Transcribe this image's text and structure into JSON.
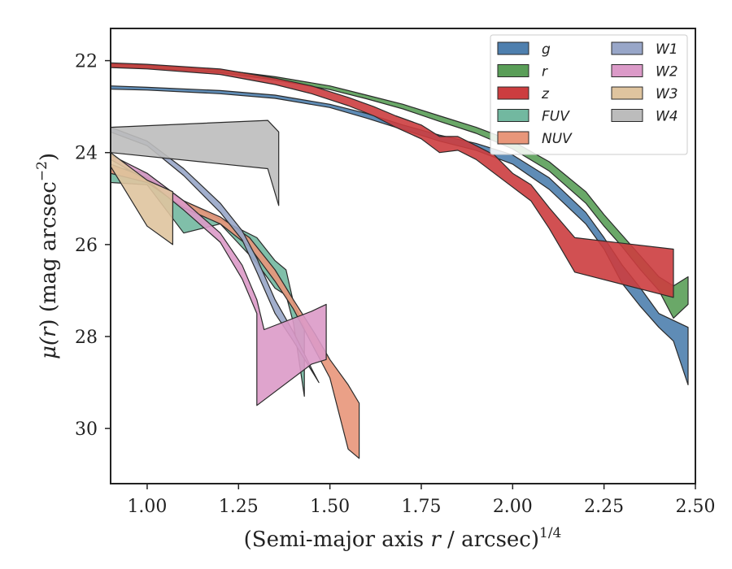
{
  "chart_data": {
    "type": "area",
    "xlabel": "(Semi-major axis r / arcsec)^1/4",
    "xlabel_parts": {
      "main": "(Semi-major axis ",
      "var": "r",
      "mid": " / arcsec)",
      "sup": "1/4"
    },
    "ylabel": "μ(r) (mag arcsec⁻²)",
    "ylabel_parts": {
      "mu": "μ(",
      "var": "r",
      "rest": ") (mag arcsec",
      "sup": "−2",
      "close": ")"
    },
    "xlim": [
      0.9,
      2.5
    ],
    "ylim": [
      31.2,
      21.3
    ],
    "y_inverted": true,
    "xticks": [
      1.0,
      1.25,
      1.5,
      1.75,
      2.0,
      2.25,
      2.5
    ],
    "xtick_labels": [
      "1.00",
      "1.25",
      "1.50",
      "1.75",
      "2.00",
      "2.25",
      "2.50"
    ],
    "yticks": [
      22,
      24,
      26,
      28,
      30
    ],
    "ytick_labels": [
      "22",
      "24",
      "26",
      "28",
      "30"
    ],
    "legend_placement": "top-right",
    "legend_columns": 2,
    "grid": false,
    "series": [
      {
        "name": "g",
        "color": "#4e7fae",
        "upper": [
          [
            0.9,
            22.55
          ],
          [
            1.0,
            22.58
          ],
          [
            1.2,
            22.65
          ],
          [
            1.35,
            22.75
          ],
          [
            1.5,
            22.95
          ],
          [
            1.6,
            23.15
          ],
          [
            1.7,
            23.4
          ],
          [
            1.8,
            23.62
          ],
          [
            1.9,
            23.8
          ],
          [
            2.0,
            24.05
          ],
          [
            2.1,
            24.55
          ],
          [
            2.2,
            25.3
          ],
          [
            2.25,
            25.85
          ],
          [
            2.3,
            26.45
          ],
          [
            2.35,
            26.95
          ],
          [
            2.4,
            27.5
          ],
          [
            2.44,
            27.65
          ],
          [
            2.48,
            27.8
          ]
        ],
        "lower": [
          [
            0.9,
            22.62
          ],
          [
            1.0,
            22.64
          ],
          [
            1.2,
            22.72
          ],
          [
            1.35,
            22.82
          ],
          [
            1.5,
            23.02
          ],
          [
            1.6,
            23.25
          ],
          [
            1.7,
            23.5
          ],
          [
            1.8,
            23.75
          ],
          [
            1.9,
            23.95
          ],
          [
            2.0,
            24.25
          ],
          [
            2.1,
            24.8
          ],
          [
            2.2,
            25.55
          ],
          [
            2.25,
            26.1
          ],
          [
            2.3,
            26.85
          ],
          [
            2.35,
            27.35
          ],
          [
            2.4,
            27.8
          ],
          [
            2.44,
            28.1
          ],
          [
            2.48,
            29.05
          ]
        ]
      },
      {
        "name": "r",
        "color": "#5a9e58",
        "upper": [
          [
            0.9,
            22.08
          ],
          [
            1.0,
            22.1
          ],
          [
            1.2,
            22.2
          ],
          [
            1.35,
            22.35
          ],
          [
            1.5,
            22.55
          ],
          [
            1.6,
            22.75
          ],
          [
            1.7,
            22.95
          ],
          [
            1.8,
            23.2
          ],
          [
            1.9,
            23.45
          ],
          [
            2.0,
            23.75
          ],
          [
            2.1,
            24.2
          ],
          [
            2.2,
            24.85
          ],
          [
            2.25,
            25.35
          ],
          [
            2.3,
            25.8
          ],
          [
            2.35,
            26.25
          ],
          [
            2.4,
            26.7
          ],
          [
            2.44,
            26.9
          ],
          [
            2.48,
            26.7
          ]
        ],
        "lower": [
          [
            0.9,
            22.14
          ],
          [
            1.0,
            22.16
          ],
          [
            1.2,
            22.26
          ],
          [
            1.35,
            22.42
          ],
          [
            1.5,
            22.63
          ],
          [
            1.6,
            22.83
          ],
          [
            1.7,
            23.05
          ],
          [
            1.8,
            23.32
          ],
          [
            1.9,
            23.58
          ],
          [
            2.0,
            23.92
          ],
          [
            2.1,
            24.4
          ],
          [
            2.2,
            25.1
          ],
          [
            2.25,
            25.6
          ],
          [
            2.3,
            26.05
          ],
          [
            2.35,
            26.55
          ],
          [
            2.4,
            27.0
          ],
          [
            2.44,
            27.6
          ],
          [
            2.48,
            27.3
          ]
        ]
      },
      {
        "name": "z",
        "color": "#cc3d3f",
        "upper": [
          [
            0.9,
            22.05
          ],
          [
            1.0,
            22.08
          ],
          [
            1.2,
            22.18
          ],
          [
            1.35,
            22.38
          ],
          [
            1.45,
            22.55
          ],
          [
            1.55,
            22.8
          ],
          [
            1.62,
            23.0
          ],
          [
            1.68,
            23.2
          ],
          [
            1.75,
            23.4
          ],
          [
            1.8,
            23.65
          ],
          [
            1.85,
            23.65
          ],
          [
            1.9,
            23.85
          ],
          [
            1.95,
            24.05
          ],
          [
            2.0,
            24.45
          ],
          [
            2.05,
            24.7
          ],
          [
            2.1,
            25.2
          ],
          [
            2.17,
            25.85
          ],
          [
            2.44,
            26.1
          ]
        ],
        "lower": [
          [
            0.9,
            22.15
          ],
          [
            1.0,
            22.18
          ],
          [
            1.2,
            22.3
          ],
          [
            1.35,
            22.52
          ],
          [
            1.45,
            22.72
          ],
          [
            1.55,
            22.98
          ],
          [
            1.62,
            23.2
          ],
          [
            1.68,
            23.45
          ],
          [
            1.75,
            23.7
          ],
          [
            1.8,
            24.0
          ],
          [
            1.85,
            23.95
          ],
          [
            1.9,
            24.15
          ],
          [
            1.95,
            24.45
          ],
          [
            2.0,
            24.75
          ],
          [
            2.05,
            25.05
          ],
          [
            2.1,
            25.65
          ],
          [
            2.17,
            26.6
          ],
          [
            2.44,
            27.15
          ]
        ]
      },
      {
        "name": "FUV",
        "color": "#72b8a0",
        "upper": [
          [
            0.9,
            24.3
          ],
          [
            1.0,
            24.45
          ],
          [
            1.1,
            25.05
          ],
          [
            1.2,
            25.45
          ],
          [
            1.3,
            25.85
          ],
          [
            1.35,
            26.35
          ],
          [
            1.38,
            26.55
          ],
          [
            1.4,
            27.25
          ],
          [
            1.43,
            27.8
          ]
        ],
        "lower": [
          [
            0.9,
            24.65
          ],
          [
            1.0,
            24.7
          ],
          [
            1.1,
            25.75
          ],
          [
            1.2,
            25.55
          ],
          [
            1.3,
            26.4
          ],
          [
            1.35,
            26.95
          ],
          [
            1.38,
            27.1
          ],
          [
            1.4,
            27.7
          ],
          [
            1.43,
            29.3
          ]
        ]
      },
      {
        "name": "NUV",
        "color": "#e8967a",
        "upper": [
          [
            0.9,
            24.25
          ],
          [
            1.0,
            24.55
          ],
          [
            1.1,
            25.05
          ],
          [
            1.2,
            25.4
          ],
          [
            1.28,
            25.85
          ],
          [
            1.35,
            26.55
          ],
          [
            1.4,
            27.2
          ],
          [
            1.46,
            27.95
          ],
          [
            1.5,
            28.5
          ],
          [
            1.55,
            29.05
          ],
          [
            1.58,
            29.45
          ]
        ],
        "lower": [
          [
            0.9,
            24.45
          ],
          [
            1.0,
            24.65
          ],
          [
            1.1,
            25.2
          ],
          [
            1.2,
            25.55
          ],
          [
            1.28,
            26.05
          ],
          [
            1.35,
            26.8
          ],
          [
            1.4,
            27.4
          ],
          [
            1.46,
            28.3
          ],
          [
            1.5,
            28.9
          ],
          [
            1.55,
            30.45
          ],
          [
            1.58,
            30.65
          ]
        ]
      },
      {
        "name": "W1",
        "color": "#98a6c8",
        "upper": [
          [
            0.9,
            23.45
          ],
          [
            1.0,
            23.75
          ],
          [
            1.1,
            24.35
          ],
          [
            1.2,
            25.1
          ],
          [
            1.26,
            25.7
          ],
          [
            1.3,
            26.3
          ],
          [
            1.35,
            27.2
          ],
          [
            1.4,
            27.9
          ],
          [
            1.45,
            28.7
          ]
        ],
        "lower": [
          [
            0.9,
            23.55
          ],
          [
            1.0,
            23.85
          ],
          [
            1.1,
            24.5
          ],
          [
            1.2,
            25.3
          ],
          [
            1.26,
            25.9
          ],
          [
            1.3,
            26.6
          ],
          [
            1.35,
            27.5
          ],
          [
            1.4,
            28.1
          ],
          [
            1.47,
            29.0
          ]
        ]
      },
      {
        "name": "W2",
        "color": "#db9ac8",
        "upper": [
          [
            0.9,
            24.05
          ],
          [
            1.0,
            24.45
          ],
          [
            1.1,
            25.05
          ],
          [
            1.2,
            25.75
          ],
          [
            1.26,
            26.45
          ],
          [
            1.3,
            27.2
          ],
          [
            1.32,
            27.85
          ],
          [
            1.45,
            27.45
          ],
          [
            1.49,
            27.3
          ]
        ],
        "lower": [
          [
            0.9,
            24.15
          ],
          [
            1.0,
            24.6
          ],
          [
            1.1,
            25.25
          ],
          [
            1.2,
            25.95
          ],
          [
            1.26,
            26.75
          ],
          [
            1.3,
            27.5
          ],
          [
            1.3,
            29.5
          ],
          [
            1.45,
            28.6
          ],
          [
            1.49,
            28.5
          ]
        ]
      },
      {
        "name": "W3",
        "color": "#dfc49f",
        "upper": [
          [
            0.9,
            24.0
          ],
          [
            1.0,
            24.6
          ],
          [
            1.07,
            24.85
          ]
        ],
        "lower": [
          [
            0.9,
            24.3
          ],
          [
            1.0,
            25.6
          ],
          [
            1.07,
            26.0
          ]
        ]
      },
      {
        "name": "W4",
        "color": "#bcbcbc",
        "upper": [
          [
            0.9,
            23.45
          ],
          [
            1.33,
            23.3
          ],
          [
            1.36,
            23.55
          ]
        ],
        "lower": [
          [
            0.9,
            24.0
          ],
          [
            1.33,
            24.35
          ],
          [
            1.36,
            25.15
          ]
        ]
      }
    ]
  }
}
